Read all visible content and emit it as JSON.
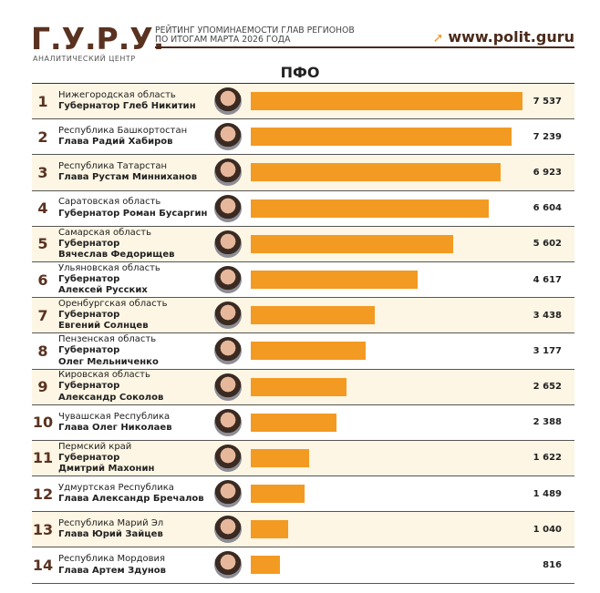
{
  "header": {
    "logo": "Г.У.Р.У.",
    "logo_sub": "АНАЛИТИЧЕСКИЙ ЦЕНТР",
    "title_line1": "РЕЙТИНГ УПОМИНАЕМОСТИ ГЛАВ РЕГИОНОВ",
    "title_line2": "ПО ИТОГАМ МАРТА 2026 ГОДА",
    "site": "www.polit.guru"
  },
  "chart_data": {
    "type": "bar",
    "title": "ПФО",
    "orientation": "horizontal",
    "xlim": [
      0,
      7537
    ],
    "colors": {
      "bar": "#f39a22",
      "accent": "#5a3220",
      "odd_row": "#fdf6e4"
    },
    "rows": [
      {
        "rank": "1",
        "region": "Нижегородская область",
        "title": "Губернатор Глеб Никитин",
        "name": "",
        "value": 7537,
        "label": "7 537"
      },
      {
        "rank": "2",
        "region": "Республика Башкортостан",
        "title": "Глава Радий Хабиров",
        "name": "",
        "value": 7239,
        "label": "7 239"
      },
      {
        "rank": "3",
        "region": "Республика Татарстан",
        "title": "Глава Рустам Минниханов",
        "name": "",
        "value": 6923,
        "label": "6 923"
      },
      {
        "rank": "4",
        "region": "Саратовская область",
        "title": "Губернатор Роман Бусаргин",
        "name": "",
        "value": 6604,
        "label": "6 604"
      },
      {
        "rank": "5",
        "region": "Самарская область",
        "title": "Губернатор",
        "name": "Вячеслав Федорищев",
        "value": 5602,
        "label": "5 602"
      },
      {
        "rank": "6",
        "region": "Ульяновская область",
        "title": "Губернатор",
        "name": "Алексей Русских",
        "value": 4617,
        "label": "4 617"
      },
      {
        "rank": "7",
        "region": "Оренбургская область",
        "title": "Губернатор",
        "name": "Евгений Солнцев",
        "value": 3438,
        "label": "3 438"
      },
      {
        "rank": "8",
        "region": "Пензенская область",
        "title": "Губернатор",
        "name": "Олег Мельниченко",
        "value": 3177,
        "label": "3 177"
      },
      {
        "rank": "9",
        "region": "Кировская область",
        "title": "Губернатор",
        "name": "Александр Соколов",
        "value": 2652,
        "label": "2 652"
      },
      {
        "rank": "10",
        "region": "Чувашская Республика",
        "title": "Глава Олег Николаев",
        "name": "",
        "value": 2388,
        "label": "2 388"
      },
      {
        "rank": "11",
        "region": "Пермский край",
        "title": "Губернатор",
        "name": "Дмитрий Махонин",
        "value": 1622,
        "label": "1 622"
      },
      {
        "rank": "12",
        "region": "Удмуртская Республика",
        "title": "Глава Александр Бречалов",
        "name": "",
        "value": 1489,
        "label": "1 489"
      },
      {
        "rank": "13",
        "region": "Республика Марий Эл",
        "title": "Глава Юрий Зайцев",
        "name": "",
        "value": 1040,
        "label": "1 040"
      },
      {
        "rank": "14",
        "region": "Республика Мордовия",
        "title": "Глава Артем Здунов",
        "name": "",
        "value": 816,
        "label": "816"
      }
    ]
  }
}
